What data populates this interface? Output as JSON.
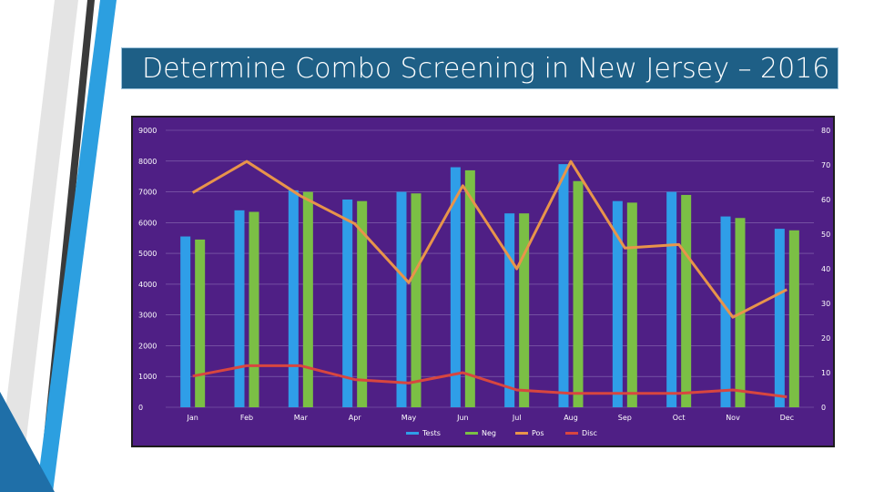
{
  "slide": {
    "title": "Determine Combo Screening in New Jersey – 2016"
  },
  "colors": {
    "title_bg": "#1e5f86",
    "plot_bg": "#4f1f85",
    "tests": "#2f9ee8",
    "neg": "#7bbf45",
    "pos": "#e8944a",
    "disc": "#d8463f",
    "deco_dark": "#3a3a3a",
    "deco_blue": "#2c9fe0"
  },
  "chart_data": {
    "type": "bar",
    "categories": [
      "Jan",
      "Feb",
      "Mar",
      "Apr",
      "May",
      "Jun",
      "Jul",
      "Aug",
      "Sep",
      "Oct",
      "Nov",
      "Dec"
    ],
    "series": [
      {
        "name": "Tests",
        "kind": "bar",
        "axis": "left",
        "color": "#2f9ee8",
        "values": [
          5550,
          6400,
          7050,
          6750,
          7000,
          7800,
          6300,
          7900,
          6700,
          7000,
          6200,
          5800
        ]
      },
      {
        "name": "Neg",
        "kind": "bar",
        "axis": "left",
        "color": "#7bbf45",
        "values": [
          5450,
          6350,
          7000,
          6700,
          6950,
          7700,
          6300,
          7350,
          6650,
          6900,
          6150,
          5750
        ]
      },
      {
        "name": "Pos",
        "kind": "line",
        "axis": "right",
        "color": "#e8944a",
        "values": [
          62,
          71,
          61,
          53,
          36,
          64,
          40,
          71,
          46,
          47,
          26,
          34
        ]
      },
      {
        "name": "Disc",
        "kind": "line",
        "axis": "right",
        "color": "#d8463f",
        "values": [
          9,
          12,
          12,
          8,
          7,
          10,
          5,
          4,
          4,
          4,
          5,
          3
        ]
      }
    ],
    "left_axis": {
      "min": 0,
      "max": 9000,
      "ticks": [
        "0",
        "1000",
        "2000",
        "3000",
        "4000",
        "5000",
        "6000",
        "7000",
        "8000",
        "9000"
      ]
    },
    "right_axis": {
      "min": 0,
      "max": 80,
      "ticks": [
        "0",
        "10",
        "20",
        "30",
        "40",
        "50",
        "60",
        "70",
        "80"
      ]
    },
    "grid": true,
    "legend_position": "bottom"
  }
}
